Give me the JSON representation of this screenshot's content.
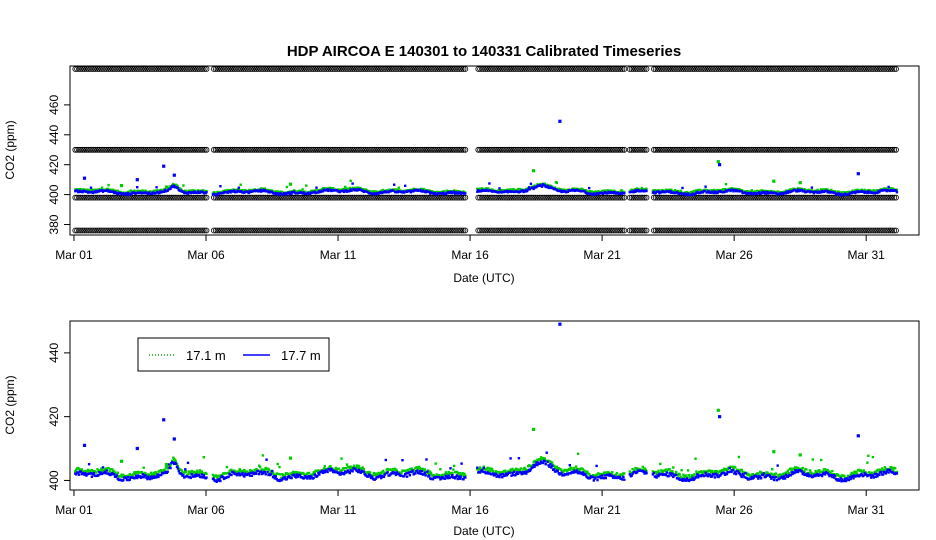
{
  "chart_data": [
    {
      "type": "scatter",
      "title": "HDP   AIRCOA  E    140301  to  140331   Calibrated Timeseries",
      "xlabel": "Date (UTC)",
      "ylabel": "CO2 (ppm)",
      "xlim": [
        -0.15,
        32.0
      ],
      "ylim": [
        373,
        486
      ],
      "x_ticks": [
        {
          "value": 0,
          "label": "Mar 01"
        },
        {
          "value": 5,
          "label": "Mar 06"
        },
        {
          "value": 10,
          "label": "Mar 11"
        },
        {
          "value": 15,
          "label": "Mar 16"
        },
        {
          "value": 20,
          "label": "Mar 21"
        },
        {
          "value": 25,
          "label": "Mar 26"
        },
        {
          "value": 30,
          "label": "Mar 31"
        }
      ],
      "y_ticks": [
        380,
        400,
        420,
        440,
        460
      ],
      "calibration_levels": [
        376,
        398,
        430,
        484
      ],
      "gaps": [
        [
          5.05,
          5.25
        ],
        [
          14.85,
          15.25
        ],
        [
          20.85,
          21.05
        ],
        [
          21.7,
          21.9
        ]
      ],
      "data_range": [
        0.05,
        31.2
      ],
      "series": [
        {
          "name": "17.1 m",
          "color": "#00cc00",
          "baseline": 402.5
        },
        {
          "name": "17.7 m",
          "color": "#0000ff",
          "baseline": 401.5
        }
      ],
      "spikes": [
        {
          "x": 0.4,
          "y": 411,
          "series": "17.7 m"
        },
        {
          "x": 1.8,
          "y": 406,
          "series": "17.1 m"
        },
        {
          "x": 2.4,
          "y": 410,
          "series": "17.7 m"
        },
        {
          "x": 3.5,
          "y": 405,
          "series": "17.1 m"
        },
        {
          "x": 3.4,
          "y": 419,
          "series": "17.7 m"
        },
        {
          "x": 3.8,
          "y": 413,
          "series": "17.7 m"
        },
        {
          "x": 8.2,
          "y": 407,
          "series": "17.1 m"
        },
        {
          "x": 17.4,
          "y": 416,
          "series": "17.1 m"
        },
        {
          "x": 18.4,
          "y": 449,
          "series": "17.7 m"
        },
        {
          "x": 24.4,
          "y": 422,
          "series": "17.1 m"
        },
        {
          "x": 24.45,
          "y": 420,
          "series": "17.7 m"
        },
        {
          "x": 29.7,
          "y": 414,
          "series": "17.7 m"
        },
        {
          "x": 26.5,
          "y": 409,
          "series": "17.1 m"
        },
        {
          "x": 27.5,
          "y": 408,
          "series": "17.1 m"
        }
      ]
    },
    {
      "type": "scatter",
      "title": "",
      "xlabel": "Date (UTC)",
      "ylabel": "CO2 (ppm)",
      "xlim": [
        -0.15,
        32.0
      ],
      "ylim": [
        397,
        450
      ],
      "x_ticks": [
        {
          "value": 0,
          "label": "Mar 01"
        },
        {
          "value": 5,
          "label": "Mar 06"
        },
        {
          "value": 10,
          "label": "Mar 11"
        },
        {
          "value": 15,
          "label": "Mar 16"
        },
        {
          "value": 20,
          "label": "Mar 21"
        },
        {
          "value": 25,
          "label": "Mar 26"
        },
        {
          "value": 30,
          "label": "Mar 31"
        }
      ],
      "y_ticks": [
        400,
        420,
        440
      ],
      "legend": {
        "position": "top-left",
        "entries": [
          {
            "label": "17.1 m",
            "color": "#00aa00",
            "style": "dotted"
          },
          {
            "label": "17.7 m",
            "color": "#0000ff",
            "style": "solid"
          }
        ]
      },
      "series": [
        {
          "name": "17.1 m",
          "color": "#00cc00",
          "baseline": 402.5
        },
        {
          "name": "17.7 m",
          "color": "#0000ff",
          "baseline": 401.5
        }
      ]
    }
  ]
}
